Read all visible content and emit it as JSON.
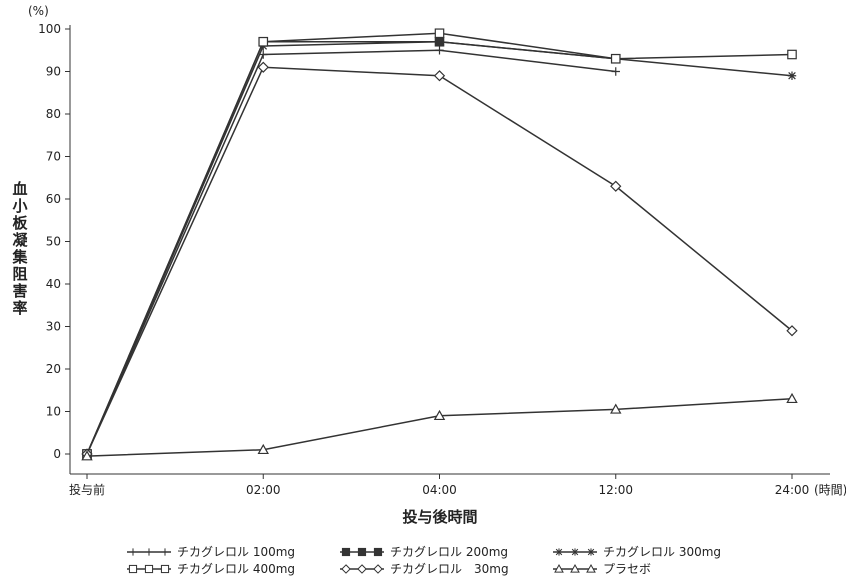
{
  "chart_data": {
    "type": "line",
    "unit_label": "(%)",
    "ylabel": "血小板凝集阻害率",
    "xlabel": "投与後時間",
    "x_unit": "(時間)",
    "categories": [
      "投与前",
      "02:00",
      "04:00",
      "12:00",
      "24:00"
    ],
    "ylim": [
      0,
      100
    ],
    "yticks": [
      0,
      10,
      20,
      30,
      40,
      50,
      60,
      70,
      80,
      90,
      100
    ],
    "grid": false,
    "legend_position": "bottom",
    "series": [
      {
        "name": "チカグレロル 100mg",
        "marker": "plus",
        "values": [
          0,
          94,
          95,
          90,
          null
        ]
      },
      {
        "name": "チカグレロル 200mg",
        "marker": "filled-square",
        "values": [
          0,
          97,
          97,
          93,
          null
        ]
      },
      {
        "name": "チカグレロル 300mg",
        "marker": "asterisk",
        "values": [
          0,
          96,
          97,
          93,
          89
        ]
      },
      {
        "name": "チカグレロル 400mg",
        "marker": "open-square",
        "values": [
          0,
          97,
          99,
          93,
          94
        ]
      },
      {
        "name": "チカグレロル　30mg",
        "marker": "diamond",
        "values": [
          0,
          91,
          89,
          63,
          29
        ]
      },
      {
        "name": "プラセボ",
        "marker": "triangle",
        "values": [
          -0.5,
          1,
          9,
          10.5,
          13
        ]
      }
    ]
  }
}
